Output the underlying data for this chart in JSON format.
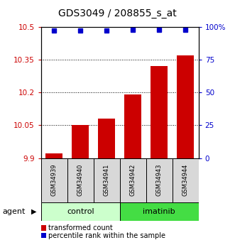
{
  "title": "GDS3049 / 208855_s_at",
  "categories": [
    "GSM34939",
    "GSM34940",
    "GSM34941",
    "GSM34942",
    "GSM34943",
    "GSM34944"
  ],
  "bar_values": [
    9.92,
    10.05,
    10.08,
    10.19,
    10.32,
    10.37
  ],
  "percentile_values": [
    97,
    97,
    97,
    98,
    98,
    98
  ],
  "bar_color": "#cc0000",
  "percentile_color": "#0000cc",
  "ylim_left": [
    9.9,
    10.5
  ],
  "ylim_right": [
    0,
    100
  ],
  "yticks_left": [
    9.9,
    10.05,
    10.2,
    10.35,
    10.5
  ],
  "yticks_right": [
    0,
    25,
    50,
    75,
    100
  ],
  "ytick_labels_left": [
    "9.9",
    "10.05",
    "10.2",
    "10.35",
    "10.5"
  ],
  "ytick_labels_right": [
    "0",
    "25",
    "50",
    "75",
    "100%"
  ],
  "grid_values": [
    10.05,
    10.2,
    10.35
  ],
  "group1_label": "control",
  "group2_label": "imatinib",
  "group1_color": "#ccffcc",
  "group2_color": "#44dd44",
  "agent_label": "agent",
  "legend_bar_label": "transformed count",
  "legend_pct_label": "percentile rank within the sample",
  "bar_bottom": 9.9,
  "figsize": [
    3.31,
    3.45
  ],
  "dpi": 100
}
